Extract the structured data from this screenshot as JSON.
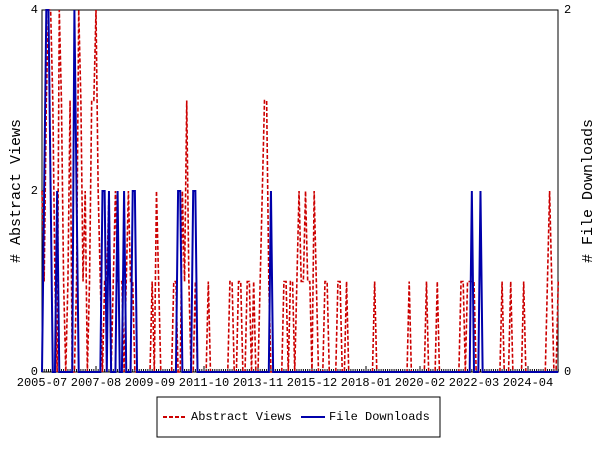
{
  "chart_data": {
    "type": "line",
    "categories": [
      "2005-07",
      null,
      null,
      null,
      null,
      null,
      null,
      null,
      null,
      null,
      null,
      null,
      null,
      null,
      null,
      null,
      null,
      null,
      null,
      null,
      null,
      null,
      null,
      null,
      null,
      "2007-08",
      null,
      null,
      null,
      null,
      null,
      null,
      null,
      null,
      null,
      null,
      null,
      null,
      null,
      null,
      null,
      null,
      null,
      null,
      null,
      null,
      null,
      null,
      null,
      null,
      "2009-09",
      null,
      null,
      null,
      null,
      null,
      null,
      null,
      null,
      null,
      null,
      null,
      null,
      null,
      null,
      null,
      null,
      null,
      null,
      null,
      null,
      null,
      null,
      null,
      null,
      "2011-10",
      null,
      null,
      null,
      null,
      null,
      null,
      null,
      null,
      null,
      null,
      null,
      null,
      null,
      null,
      null,
      null,
      null,
      null,
      null,
      null,
      null,
      null,
      null,
      null,
      "2013-11",
      null,
      null,
      null,
      null,
      null,
      null,
      null,
      null,
      null,
      null,
      null,
      null,
      null,
      null,
      null,
      null,
      null,
      null,
      null,
      null,
      null,
      null,
      null,
      null,
      "2015-12",
      null,
      null,
      null,
      null,
      null,
      null,
      null,
      null,
      null,
      null,
      null,
      null,
      null,
      null,
      null,
      null,
      null,
      null,
      null,
      null,
      null,
      null,
      null,
      null,
      "2018-01",
      null,
      null,
      null,
      null,
      null,
      null,
      null,
      null,
      null,
      null,
      null,
      null,
      null,
      null,
      null,
      null,
      null,
      null,
      null,
      null,
      null,
      null,
      null,
      null,
      "2020-02",
      null,
      null,
      null,
      null,
      null,
      null,
      null,
      null,
      null,
      null,
      null,
      null,
      null,
      null,
      null,
      null,
      null,
      null,
      null,
      null,
      null,
      null,
      null,
      null,
      "2022-03",
      null,
      null,
      null,
      null,
      null,
      null,
      null,
      null,
      null,
      null,
      null,
      null,
      null,
      null,
      null,
      null,
      null,
      null,
      null,
      null,
      null,
      null,
      null,
      null,
      "2024-04",
      null,
      null,
      null,
      null,
      null,
      null,
      null,
      null,
      null,
      null,
      null,
      null,
      null,
      null
    ],
    "series": [
      {
        "name": "Abstract Views",
        "color": "#cc0000",
        "axis": "y",
        "values": [
          2,
          1,
          3,
          4,
          4,
          3,
          1,
          0,
          4,
          3,
          1,
          0,
          1,
          3,
          0,
          0,
          1,
          4,
          3,
          1,
          2,
          0,
          1,
          3,
          3,
          4,
          2,
          1,
          0,
          1,
          1,
          2,
          0,
          1,
          2,
          1,
          1,
          1,
          0,
          1,
          2,
          1,
          1,
          0,
          0,
          0,
          0,
          0,
          0,
          0,
          0,
          1,
          0,
          2,
          1,
          0,
          0,
          0,
          0,
          0,
          0,
          1,
          1,
          0,
          0,
          2,
          1,
          3,
          1,
          0,
          0,
          1,
          0,
          0,
          0,
          0,
          0,
          1,
          0,
          0,
          0,
          0,
          0,
          0,
          0,
          0,
          0,
          1,
          1,
          0,
          0,
          1,
          1,
          0,
          0,
          1,
          1,
          0,
          1,
          0,
          0,
          1,
          2,
          3,
          3,
          1,
          0,
          0,
          0,
          0,
          0,
          0,
          1,
          1,
          0,
          1,
          1,
          0,
          1,
          2,
          1,
          1,
          2,
          1,
          1,
          0,
          2,
          1,
          0,
          0,
          0,
          1,
          1,
          0,
          0,
          0,
          0,
          1,
          1,
          0,
          0,
          1,
          0,
          0,
          0,
          0,
          0,
          0,
          0,
          0,
          0,
          0,
          0,
          0,
          1,
          0,
          0,
          0,
          0,
          0,
          0,
          0,
          0,
          0,
          0,
          0,
          0,
          0,
          0,
          0,
          1,
          0,
          0,
          0,
          0,
          0,
          0,
          0,
          1,
          0,
          0,
          0,
          0,
          1,
          0,
          0,
          0,
          0,
          0,
          0,
          0,
          0,
          0,
          0,
          1,
          1,
          0,
          1,
          1,
          1,
          1,
          0,
          0,
          0,
          0,
          0,
          0,
          0,
          0,
          0,
          0,
          0,
          0,
          1,
          0,
          0,
          0,
          1,
          0,
          0,
          0,
          0,
          0,
          1,
          0,
          0,
          0,
          0,
          0,
          0,
          0,
          0,
          0,
          0,
          1,
          2,
          1,
          0,
          0,
          1
        ]
      },
      {
        "name": "File Downloads",
        "color": "#0000aa",
        "axis": "y2",
        "values": [
          0,
          1,
          2,
          2,
          1,
          0,
          0,
          1,
          0,
          0,
          0,
          0,
          0,
          0,
          0,
          2,
          1,
          0,
          0,
          0,
          0,
          0,
          0,
          0,
          0,
          0,
          0,
          0,
          1,
          1,
          0,
          1,
          0,
          0,
          0,
          1,
          0,
          0,
          1,
          0,
          0,
          0,
          1,
          1,
          0,
          0,
          0,
          0,
          0,
          0,
          0,
          0,
          0,
          0,
          0,
          0,
          0,
          0,
          0,
          0,
          0,
          0,
          0,
          1,
          1,
          0,
          0,
          0,
          0,
          0,
          1,
          1,
          0,
          0,
          0,
          0,
          0,
          0,
          0,
          0,
          0,
          0,
          0,
          0,
          0,
          0,
          0,
          0,
          0,
          0,
          0,
          0,
          0,
          0,
          0,
          0,
          0,
          0,
          0,
          0,
          0,
          0,
          0,
          0,
          0,
          0,
          1,
          0,
          0,
          0,
          0,
          0,
          0,
          0,
          0,
          0,
          0,
          0,
          0,
          0,
          0,
          0,
          0,
          0,
          0,
          0,
          0,
          0,
          0,
          0,
          0,
          0,
          0,
          0,
          0,
          0,
          0,
          0,
          0,
          0,
          0,
          0,
          0,
          0,
          0,
          0,
          0,
          0,
          0,
          0,
          0,
          0,
          0,
          0,
          0,
          0,
          0,
          0,
          0,
          0,
          0,
          0,
          0,
          0,
          0,
          0,
          0,
          0,
          0,
          0,
          0,
          0,
          0,
          0,
          0,
          0,
          0,
          0,
          0,
          0,
          0,
          0,
          0,
          0,
          0,
          0,
          0,
          0,
          0,
          0,
          0,
          0,
          0,
          0,
          0,
          0,
          0,
          0,
          0,
          1,
          0,
          0,
          0,
          1,
          0,
          0,
          0,
          0,
          0,
          0,
          0,
          0,
          0,
          0,
          0,
          0,
          0,
          0,
          0,
          0,
          0,
          0,
          0,
          0,
          0,
          0,
          0,
          0,
          0,
          0,
          0,
          0,
          0,
          0,
          0,
          0,
          0,
          0,
          0,
          0
        ]
      }
    ],
    "ylabel": "# Abstract Views",
    "y2label": "# File Downloads",
    "ylim": [
      0,
      4
    ],
    "yticks": [
      0,
      2,
      4
    ],
    "y2lim": [
      0,
      2
    ],
    "y2ticks": [
      0,
      2
    ]
  }
}
